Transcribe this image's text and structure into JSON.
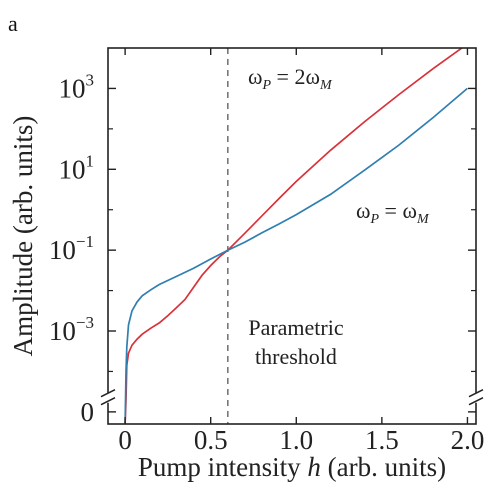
{
  "panel_label": "a",
  "colors": {
    "red": "#d8323a",
    "blue": "#2f7fb0",
    "axis": "#222222",
    "threshold": "#777777"
  },
  "chart_data": {
    "type": "line",
    "xlabel_prefix": "Pump intensity ",
    "xlabel_var": "h",
    "xlabel_suffix": " (arb. units)",
    "ylabel": "Amplitude (arb. units)",
    "yscale": "log",
    "xlim": [
      -0.1,
      2.05
    ],
    "ylim_log10": [
      -5.3,
      4.0
    ],
    "x_ticks": [
      {
        "value": 0.0,
        "label": "0"
      },
      {
        "value": 0.5,
        "label": "0.5"
      },
      {
        "value": 1.0,
        "label": "1.0"
      },
      {
        "value": 1.5,
        "label": "1.5"
      },
      {
        "value": 2.0,
        "label": "2.0"
      }
    ],
    "y_ticks": [
      {
        "log10": 3,
        "base": "10",
        "exp": "3"
      },
      {
        "log10": 1,
        "base": "10",
        "exp": "1"
      },
      {
        "log10": -1,
        "base": "10",
        "exp": "−1"
      },
      {
        "log10": -3,
        "base": "10",
        "exp": "−3"
      },
      {
        "log10": -5,
        "base": "0",
        "exp": ""
      }
    ],
    "axis_break_log10": -4.65,
    "threshold": {
      "x": 0.6,
      "label_line1": "Parametric",
      "label_line2": "threshold"
    },
    "series": [
      {
        "label_prefix": "ω",
        "label_sub1": "P",
        "label_mid": " = 2ω",
        "label_sub2": "M",
        "color": "#d8323a",
        "x": [
          0.0,
          0.005,
          0.01,
          0.02,
          0.04,
          0.07,
          0.1,
          0.15,
          0.2,
          0.25,
          0.3,
          0.35,
          0.4,
          0.45,
          0.5,
          0.55,
          0.6,
          0.7,
          0.8,
          0.9,
          1.0,
          1.2,
          1.4,
          1.6,
          1.8,
          2.0
        ],
        "log10_y": [
          -5.3,
          -4.7,
          -3.85,
          -3.55,
          -3.35,
          -3.2,
          -3.08,
          -2.93,
          -2.8,
          -2.62,
          -2.42,
          -2.22,
          -1.92,
          -1.62,
          -1.38,
          -1.17,
          -1.0,
          -0.58,
          -0.15,
          0.28,
          0.7,
          1.47,
          2.18,
          2.85,
          3.49,
          4.1
        ]
      },
      {
        "label_prefix": "ω",
        "label_sub1": "P",
        "label_mid": " = ω",
        "label_sub2": "M",
        "color": "#2f7fb0",
        "x": [
          0.0,
          0.005,
          0.01,
          0.02,
          0.04,
          0.07,
          0.1,
          0.15,
          0.2,
          0.3,
          0.4,
          0.5,
          0.6,
          0.7,
          0.8,
          0.9,
          1.0,
          1.2,
          1.4,
          1.6,
          1.8,
          2.0
        ],
        "log10_y": [
          -5.3,
          -4.0,
          -3.4,
          -2.85,
          -2.5,
          -2.28,
          -2.13,
          -1.98,
          -1.85,
          -1.65,
          -1.45,
          -1.22,
          -1.0,
          -0.8,
          -0.57,
          -0.35,
          -0.12,
          0.38,
          0.98,
          1.6,
          2.28,
          3.0
        ]
      }
    ]
  }
}
